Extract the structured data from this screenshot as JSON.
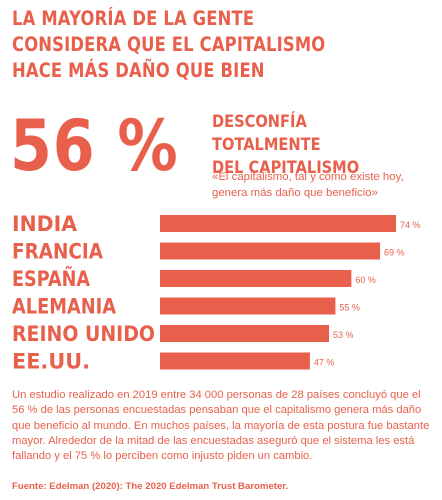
{
  "title": "LA MAYORÍA DE LA GENTE\nCONSIDERA QUE EL CAPITALISMO\nHACE MÁS DAÑO QUE BIEN",
  "highlight": {
    "number": "56 %",
    "headline": "DESCONFÍA TOTALMENTE\nDEL CAPITALISMO",
    "quote": "«El capitalismo, tal y como existe hoy, genera más daño que beneficio»"
  },
  "chart_data": {
    "type": "bar",
    "orientation": "horizontal",
    "categories": [
      "INDIA",
      "FRANCIA",
      "ESPAÑA",
      "ALEMANIA",
      "REINO UNIDO",
      "EE.UU."
    ],
    "values": [
      74,
      69,
      60,
      55,
      53,
      47
    ],
    "value_labels": [
      "74 %",
      "69 %",
      "60 %",
      "55 %",
      "53 %",
      "47 %"
    ],
    "unit": "%",
    "xlim": [
      0,
      100
    ],
    "grid": false,
    "legend": "none",
    "bar_color": "#e8604c"
  },
  "body_text": "Un estudio realizado en 2019 entre 34 000 personas de 28 países concluyó que el 56 % de las personas encuestadas pensaban que el capitalismo genera más daño que beneficio al mundo. En muchos países, la mayoría de esta postura fue bastante mayor. Alrededor de la mitad de las encuestadas aseguró que el sistema les está fallando y el 75 % lo perciben como injusto piden un cambio.",
  "source": "Fuente: Edelman (2020): The 2020 Edelman Trust Barometer.",
  "colors": {
    "accent": "#e8604c",
    "background": "#ffffff"
  }
}
